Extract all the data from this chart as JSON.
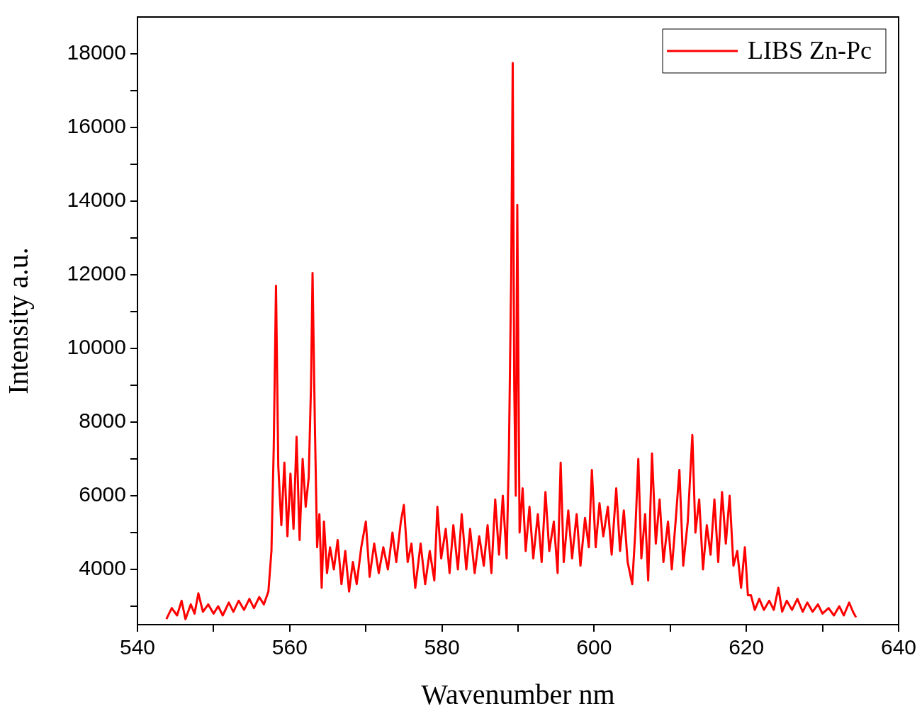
{
  "chart_data": {
    "type": "line",
    "xlabel": "Wavenumber nm",
    "ylabel": "Intensity a.u.",
    "legend": "top right",
    "grid": false,
    "marker": "none",
    "line_style": "solid",
    "xlim": [
      540,
      640
    ],
    "xticks": [
      540,
      {
        "value": 550,
        "label": null
      },
      560,
      {
        "value": 570,
        "label": null
      },
      580,
      {
        "value": 590,
        "label": null
      },
      600,
      {
        "value": 610,
        "label": null
      },
      620,
      {
        "value": 630,
        "label": null
      },
      640
    ],
    "ylim": [
      2500,
      19000
    ],
    "yticks": [
      {
        "value": 3000,
        "label": null
      },
      4000,
      {
        "value": 5000,
        "label": null
      },
      6000,
      {
        "value": 7000,
        "label": null
      },
      8000,
      {
        "value": 9000,
        "label": null
      },
      10000,
      {
        "value": 11000,
        "label": null
      },
      12000,
      {
        "value": 13000,
        "label": null
      },
      14000,
      {
        "value": 15000,
        "label": null
      },
      16000,
      {
        "value": 17000,
        "label": null
      },
      18000
    ],
    "series": [
      {
        "name": "LIBS Zn-Pc",
        "color": "#ff0000",
        "x": [
          543.8,
          544.5,
          545.2,
          545.8,
          546.3,
          547,
          547.5,
          548,
          548.6,
          549.3,
          550,
          550.6,
          551.2,
          552,
          552.6,
          553.3,
          554,
          554.7,
          555.3,
          556,
          556.6,
          557.2,
          557.6,
          557.9,
          558.2,
          558.5,
          558.9,
          559.3,
          559.7,
          560.1,
          560.5,
          560.9,
          561.3,
          561.7,
          562.1,
          562.5,
          562.8,
          563.0,
          563.3,
          563.6,
          563.9,
          564.2,
          564.5,
          564.9,
          565.3,
          565.8,
          566.3,
          566.8,
          567.3,
          567.8,
          568.3,
          568.8,
          569.4,
          570,
          570.5,
          571.1,
          571.7,
          572.3,
          572.9,
          573.5,
          574,
          574.6,
          575,
          575.5,
          576,
          576.5,
          577.2,
          577.8,
          578.4,
          579,
          579.4,
          579.9,
          580.5,
          581,
          581.5,
          582.1,
          582.6,
          583.2,
          583.7,
          584.3,
          584.9,
          585.5,
          586,
          586.5,
          587,
          587.5,
          588,
          588.5,
          588.8,
          589.1,
          589.3,
          589.5,
          589.7,
          589.9,
          590.2,
          590.6,
          591,
          591.5,
          592,
          592.6,
          593.1,
          593.6,
          594.1,
          594.7,
          595.2,
          595.6,
          596,
          596.6,
          597.1,
          597.7,
          598.2,
          598.8,
          599.3,
          599.7,
          600.2,
          600.7,
          601.2,
          601.8,
          602.3,
          602.9,
          603.4,
          603.9,
          604.4,
          605,
          605.4,
          605.8,
          606.2,
          606.7,
          607.1,
          607.6,
          608.1,
          608.6,
          609.1,
          609.7,
          610.2,
          610.7,
          611.2,
          611.7,
          612.3,
          612.9,
          613.3,
          613.8,
          614.3,
          614.8,
          615.3,
          615.8,
          616.3,
          616.8,
          617.3,
          617.8,
          618.3,
          618.8,
          619.3,
          619.8,
          620.2,
          620.6,
          621.1,
          621.7,
          622.3,
          623,
          623.6,
          624.2,
          624.7,
          625.3,
          626,
          626.7,
          627.4,
          628,
          628.7,
          629.4,
          630,
          630.8,
          631.5,
          632.2,
          632.8,
          633.5,
          634,
          634.4
        ],
        "values": [
          2650,
          2950,
          2750,
          3150,
          2650,
          3050,
          2800,
          3350,
          2850,
          3050,
          2800,
          3000,
          2750,
          3100,
          2850,
          3150,
          2900,
          3200,
          2950,
          3250,
          3050,
          3400,
          4500,
          7300,
          11700,
          6800,
          5200,
          6900,
          4900,
          6600,
          5100,
          7600,
          4800,
          7000,
          5700,
          6500,
          9000,
          12050,
          8000,
          4600,
          5500,
          3500,
          5300,
          3900,
          4600,
          4000,
          4800,
          3600,
          4500,
          3400,
          4200,
          3600,
          4600,
          5300,
          3800,
          4700,
          3900,
          4600,
          4000,
          5000,
          4200,
          5300,
          5750,
          4200,
          4700,
          3500,
          4700,
          3600,
          4500,
          3700,
          5700,
          4300,
          5100,
          3900,
          5200,
          4000,
          5500,
          4000,
          5100,
          3900,
          4900,
          4100,
          5200,
          3900,
          5900,
          4400,
          6000,
          4300,
          7150,
          12000,
          17750,
          9000,
          6000,
          13900,
          5000,
          6200,
          4500,
          5700,
          4300,
          5500,
          4200,
          6100,
          4500,
          5300,
          3900,
          6900,
          4200,
          5600,
          4300,
          5500,
          4100,
          5400,
          4600,
          6700,
          4600,
          5800,
          4900,
          5700,
          4400,
          6200,
          4500,
          5600,
          4200,
          3600,
          5000,
          7000,
          4300,
          5500,
          3700,
          7150,
          4700,
          5900,
          4200,
          5300,
          4000,
          5300,
          6700,
          4100,
          5300,
          7650,
          5000,
          5900,
          4000,
          5200,
          4400,
          5900,
          4200,
          6100,
          4700,
          6000,
          4100,
          4500,
          3500,
          4600,
          3300,
          3300,
          2900,
          3200,
          2900,
          3150,
          2900,
          3500,
          2850,
          3150,
          2900,
          3200,
          2850,
          3100,
          2850,
          3050,
          2800,
          2950,
          2750,
          3000,
          2750,
          3100,
          2850,
          2700
        ]
      }
    ]
  }
}
